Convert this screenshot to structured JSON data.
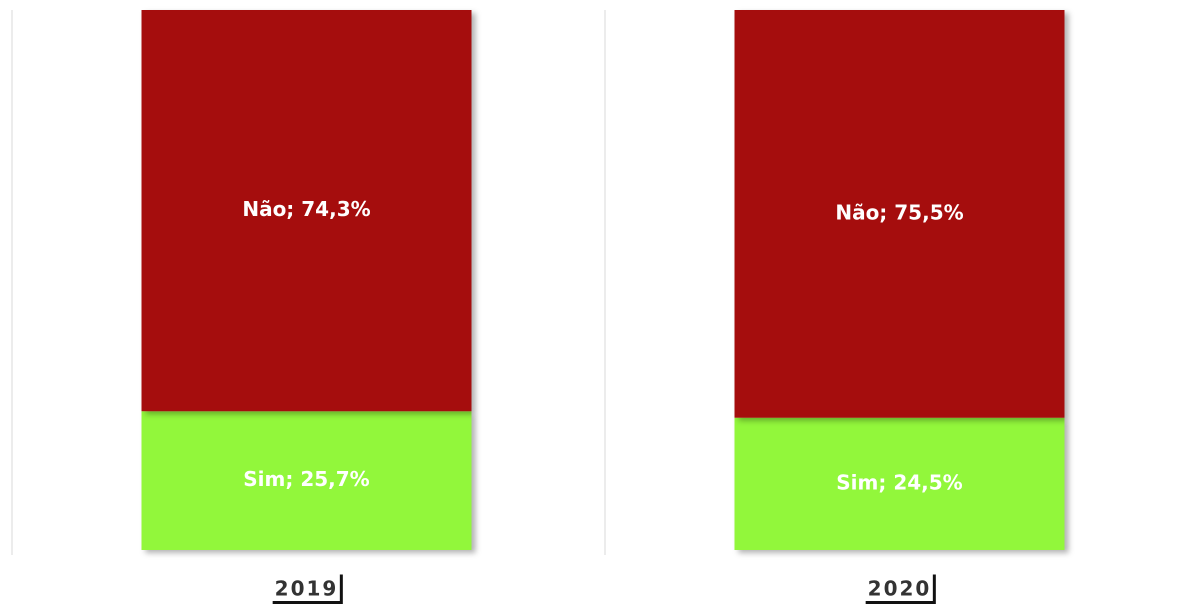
{
  "chart_data": {
    "type": "stacked_bar",
    "categories": [
      "2019",
      "2020"
    ],
    "series": [
      {
        "name": "Sim",
        "color": "#92f73a",
        "values": [
          25.7,
          24.5
        ],
        "value_labels": [
          "Sim; 25,7%",
          "Sim; 24,5%"
        ]
      },
      {
        "name": "Não",
        "color": "#a50808",
        "values": [
          74.3,
          75.5
        ],
        "value_labels": [
          "Não; 74,3%",
          "Não; 75,5%"
        ]
      }
    ],
    "ylim": [
      0,
      100
    ]
  }
}
